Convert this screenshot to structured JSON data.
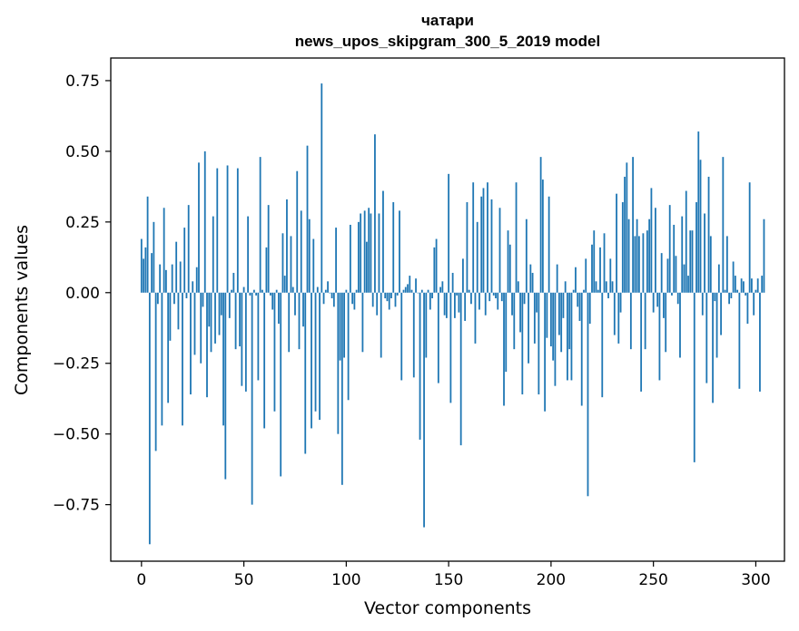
{
  "chart_data": {
    "type": "bar",
    "title_lines": [
      "чатари",
      "news_upos_skipgram_300_5_2019 model"
    ],
    "xlabel": "Vector components",
    "ylabel": "Components values",
    "xlim": [
      -15,
      314
    ],
    "ylim": [
      -0.95,
      0.83
    ],
    "x_ticks": [
      0,
      50,
      100,
      150,
      200,
      250,
      300
    ],
    "x_tick_labels": [
      "0",
      "50",
      "100",
      "150",
      "200",
      "250",
      "300"
    ],
    "y_ticks": [
      0.75,
      0.5,
      0.25,
      0.0,
      -0.25,
      -0.5,
      -0.75
    ],
    "y_tick_labels": [
      "0.75",
      "0.50",
      "0.25",
      "0.00",
      "−0.25",
      "−0.50",
      "−0.75"
    ],
    "bar_color": "#1f77b4",
    "grid": false,
    "values": [
      0.19,
      0.12,
      0.16,
      0.34,
      -0.89,
      0.14,
      0.25,
      -0.56,
      -0.04,
      0.1,
      -0.47,
      0.3,
      0.08,
      -0.39,
      -0.17,
      0.1,
      -0.04,
      0.18,
      -0.13,
      0.11,
      -0.47,
      0.23,
      -0.02,
      0.31,
      -0.36,
      0.04,
      -0.22,
      0.09,
      0.46,
      -0.25,
      -0.05,
      0.5,
      -0.37,
      -0.12,
      -0.21,
      0.27,
      -0.18,
      0.44,
      -0.15,
      -0.08,
      -0.47,
      -0.66,
      0.45,
      -0.09,
      0.01,
      0.07,
      -0.2,
      0.44,
      -0.19,
      -0.33,
      0.02,
      -0.35,
      0.27,
      -0.01,
      -0.75,
      0.01,
      -0.01,
      -0.31,
      0.48,
      0.01,
      -0.48,
      0.16,
      0.31,
      -0.01,
      -0.06,
      -0.42,
      0.01,
      -0.11,
      -0.65,
      0.21,
      0.06,
      0.33,
      -0.21,
      0.2,
      0.02,
      -0.08,
      0.43,
      -0.2,
      0.29,
      -0.12,
      -0.57,
      0.52,
      0.26,
      -0.48,
      0.19,
      -0.42,
      0.02,
      -0.45,
      0.74,
      -0.04,
      0.01,
      0.04,
      0.0,
      -0.02,
      -0.05,
      0.23,
      -0.5,
      -0.24,
      -0.68,
      -0.23,
      0.01,
      -0.38,
      0.24,
      -0.04,
      -0.06,
      0.01,
      0.25,
      0.28,
      -0.21,
      0.29,
      0.18,
      0.3,
      0.28,
      -0.05,
      0.56,
      -0.08,
      0.28,
      -0.23,
      0.36,
      -0.02,
      -0.03,
      -0.06,
      -0.02,
      0.32,
      -0.05,
      -0.01,
      0.29,
      -0.31,
      0.01,
      0.02,
      0.03,
      0.06,
      0.01,
      -0.3,
      0.05,
      0.0,
      -0.52,
      0.01,
      -0.83,
      -0.23,
      0.01,
      -0.06,
      -0.02,
      0.16,
      0.19,
      -0.32,
      0.02,
      0.04,
      -0.08,
      -0.09,
      0.42,
      -0.39,
      0.07,
      -0.09,
      -0.01,
      -0.07,
      -0.54,
      0.12,
      -0.1,
      0.32,
      0.01,
      -0.04,
      0.39,
      -0.18,
      0.25,
      -0.06,
      0.34,
      0.37,
      -0.08,
      0.39,
      -0.03,
      0.33,
      -0.01,
      -0.02,
      -0.06,
      0.3,
      -0.03,
      -0.4,
      -0.28,
      0.22,
      0.17,
      -0.08,
      -0.2,
      0.39,
      0.04,
      -0.14,
      -0.36,
      -0.04,
      0.26,
      -0.25,
      0.1,
      0.07,
      -0.18,
      -0.07,
      -0.36,
      0.48,
      0.4,
      -0.42,
      -0.16,
      0.34,
      -0.19,
      -0.24,
      -0.33,
      0.1,
      -0.15,
      -0.21,
      -0.09,
      0.04,
      -0.31,
      -0.2,
      -0.31,
      0.01,
      0.09,
      -0.05,
      -0.1,
      -0.4,
      0.01,
      0.12,
      -0.72,
      -0.11,
      0.17,
      0.22,
      0.04,
      0.01,
      0.16,
      -0.37,
      0.21,
      0.04,
      -0.02,
      0.12,
      0.04,
      -0.15,
      0.35,
      -0.18,
      -0.07,
      0.32,
      0.41,
      0.46,
      0.26,
      -0.2,
      0.48,
      0.2,
      0.26,
      0.2,
      -0.35,
      0.21,
      -0.2,
      0.22,
      0.26,
      0.37,
      -0.07,
      0.3,
      -0.05,
      -0.31,
      0.14,
      -0.09,
      -0.21,
      0.12,
      0.31,
      -0.01,
      0.24,
      0.13,
      -0.04,
      -0.23,
      0.27,
      0.1,
      0.36,
      0.06,
      0.22,
      0.22,
      -0.6,
      0.32,
      0.57,
      0.47,
      -0.08,
      0.28,
      -0.32,
      0.41,
      0.2,
      -0.39,
      -0.03,
      -0.23,
      0.1,
      -0.15,
      0.48,
      0.01,
      0.2,
      -0.04,
      -0.02,
      0.11,
      0.06,
      0.01,
      -0.34,
      0.05,
      0.04,
      -0.01,
      -0.11,
      0.39,
      0.05,
      -0.08,
      0.01,
      0.05,
      -0.35,
      0.06,
      0.26
    ]
  }
}
